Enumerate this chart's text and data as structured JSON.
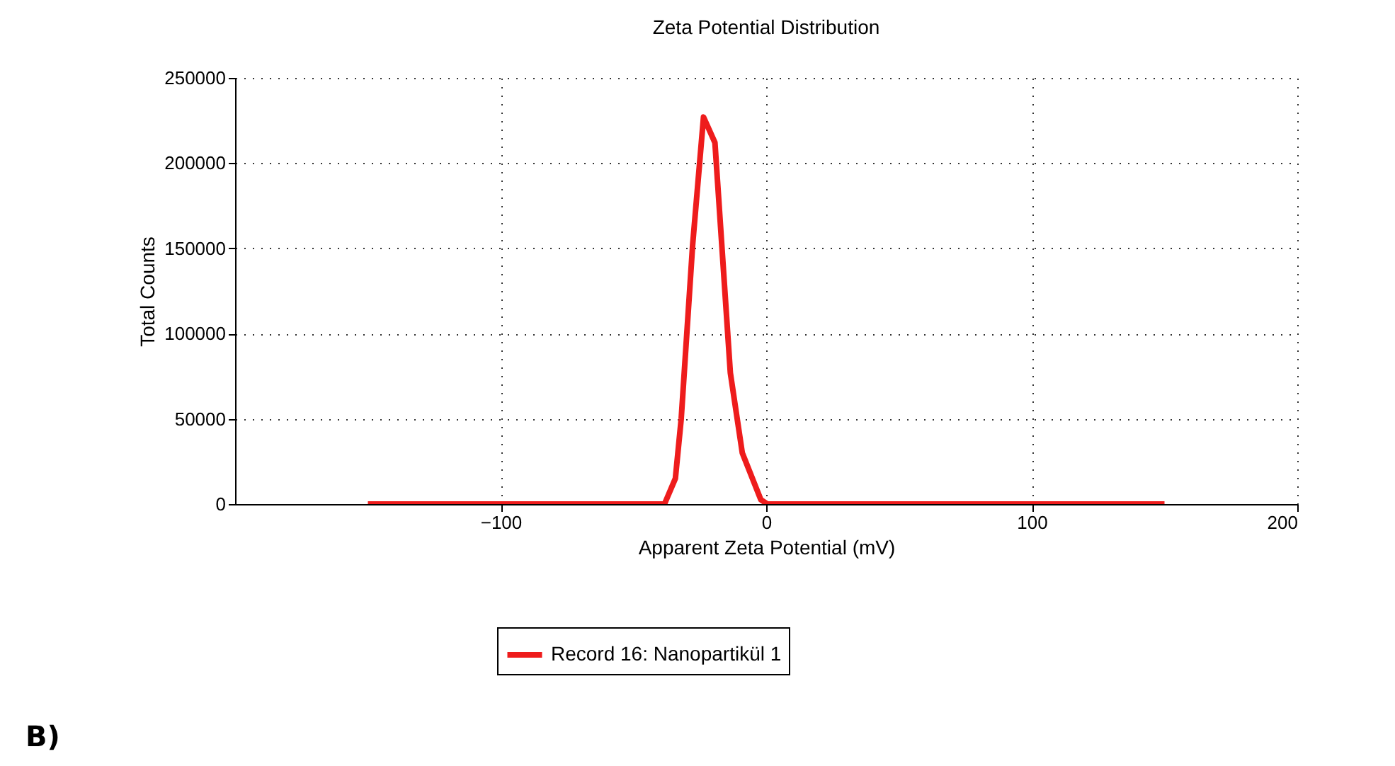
{
  "chart_data": {
    "type": "line",
    "title": "Zeta Potential Distribution",
    "xlabel": "Apparent Zeta Potential (mV)",
    "ylabel": "Total Counts",
    "x": [
      -150,
      -100,
      -50,
      -38.3,
      -34.2,
      -32,
      -27.7,
      -23.6,
      -19.3,
      -13.5,
      -9,
      -2,
      0.5,
      50,
      100,
      150
    ],
    "series": [
      {
        "name": "Record 16: Nanopartikül 1",
        "color": "#ee1c1c",
        "values": [
          0,
          0,
          0,
          0,
          15000,
          50000,
          152000,
          227000,
          212000,
          77000,
          30000,
          2500,
          0,
          0,
          0,
          0
        ]
      }
    ],
    "xlim": [
      -200,
      200
    ],
    "xticks": [
      -100,
      0,
      100,
      200
    ],
    "ylim": [
      0,
      250000
    ],
    "yticks": [
      0,
      50000,
      100000,
      150000,
      200000,
      250000
    ],
    "grid": true,
    "legend": "bottom",
    "annotations": [
      "B)"
    ]
  }
}
